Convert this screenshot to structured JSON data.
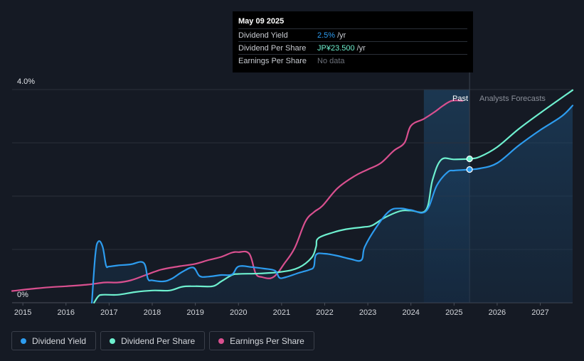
{
  "tooltip": {
    "date": "May 09 2025",
    "rows": [
      {
        "label": "Dividend Yield",
        "value": "2.5%",
        "unit": "/yr"
      },
      {
        "label": "Dividend Per Share",
        "value": "JP¥23.500",
        "unit": "/yr"
      },
      {
        "label": "Earnings Per Share",
        "value": "No data",
        "unit": ""
      }
    ]
  },
  "regions": {
    "past": "Past",
    "forecast": "Analysts Forecasts"
  },
  "legend": [
    {
      "label": "Dividend Yield",
      "color": "#2d9cef"
    },
    {
      "label": "Dividend Per Share",
      "color": "#6ef0cf"
    },
    {
      "label": "Earnings Per Share",
      "color": "#d9508f"
    }
  ],
  "chart_data": {
    "type": "line",
    "y_labels": {
      "top": "4.0%",
      "bottom": "0%"
    },
    "ylim": [
      0,
      4.0
    ],
    "xlim": [
      2014.75,
      2027.75
    ],
    "x_ticks": [
      "2015",
      "2016",
      "2017",
      "2018",
      "2019",
      "2020",
      "2021",
      "2022",
      "2023",
      "2024",
      "2025",
      "2026",
      "2027"
    ],
    "grid": true,
    "forecast_start": 2025.36,
    "past_band_start": 2024.3,
    "series": [
      {
        "name": "Dividend Yield",
        "color": "#2d9cef",
        "axis": "percent",
        "x": [
          2016.6,
          2016.68,
          2016.75,
          2016.85,
          2016.93,
          2017.0,
          2017.2,
          2017.5,
          2017.8,
          2017.9,
          2018.0,
          2018.25,
          2018.45,
          2018.7,
          2018.95,
          2019.1,
          2019.3,
          2019.6,
          2019.85,
          2020.0,
          2020.3,
          2020.6,
          2020.85,
          2020.95,
          2021.1,
          2021.4,
          2021.65,
          2021.75,
          2021.8,
          2022.0,
          2022.3,
          2022.6,
          2022.85,
          2022.93,
          2023.2,
          2023.5,
          2023.75,
          2024.0,
          2024.35,
          2024.6,
          2024.85,
          2025.0,
          2025.2,
          2025.36,
          2025.6,
          2026.0,
          2026.5,
          2027.0,
          2027.5,
          2027.75
        ],
        "y": [
          0.0,
          0.9,
          1.15,
          1.05,
          0.7,
          0.68,
          0.7,
          0.72,
          0.75,
          0.45,
          0.42,
          0.4,
          0.45,
          0.58,
          0.66,
          0.5,
          0.49,
          0.52,
          0.53,
          0.68,
          0.67,
          0.64,
          0.6,
          0.47,
          0.48,
          0.56,
          0.62,
          0.68,
          0.9,
          0.92,
          0.88,
          0.82,
          0.8,
          1.05,
          1.42,
          1.72,
          1.77,
          1.74,
          1.72,
          2.2,
          2.45,
          2.48,
          2.49,
          2.5,
          2.52,
          2.62,
          2.95,
          3.24,
          3.5,
          3.7
        ]
      },
      {
        "name": "Dividend Per Share",
        "color": "#6ef0cf",
        "axis": "dps",
        "x": [
          2016.65,
          2016.75,
          2016.85,
          2017.2,
          2017.6,
          2018.0,
          2018.4,
          2018.7,
          2019.0,
          2019.4,
          2019.6,
          2019.85,
          2020.0,
          2020.5,
          2021.0,
          2021.4,
          2021.7,
          2021.8,
          2021.85,
          2022.2,
          2022.5,
          2022.9,
          2023.1,
          2023.4,
          2023.75,
          2024.0,
          2024.35,
          2024.5,
          2024.7,
          2025.0,
          2025.36,
          2025.6,
          2026.0,
          2026.5,
          2027.0,
          2027.75
        ],
        "y": [
          0.0,
          0.12,
          0.15,
          0.15,
          0.2,
          0.23,
          0.23,
          0.3,
          0.31,
          0.31,
          0.4,
          0.52,
          0.54,
          0.55,
          0.58,
          0.66,
          0.85,
          1.05,
          1.21,
          1.32,
          1.38,
          1.42,
          1.45,
          1.6,
          1.72,
          1.73,
          1.74,
          2.3,
          2.68,
          2.69,
          2.7,
          2.74,
          2.92,
          3.26,
          3.56,
          3.99
        ]
      },
      {
        "name": "Earnings Per Share",
        "color": "#d9508f",
        "axis": "eps",
        "x": [
          2014.75,
          2015.2,
          2015.6,
          2016.0,
          2016.5,
          2016.9,
          2017.2,
          2017.5,
          2017.85,
          2018.2,
          2018.6,
          2019.0,
          2019.3,
          2019.6,
          2019.85,
          2020.0,
          2020.25,
          2020.4,
          2020.55,
          2020.75,
          2020.9,
          2021.05,
          2021.3,
          2021.55,
          2021.75,
          2021.95,
          2022.3,
          2022.7,
          2023.0,
          2023.3,
          2023.6,
          2023.85,
          2024.0,
          2024.3,
          2024.55,
          2024.75,
          2024.95,
          2025.2
        ],
        "y": [
          0.22,
          0.26,
          0.29,
          0.31,
          0.34,
          0.38,
          0.38,
          0.42,
          0.52,
          0.62,
          0.68,
          0.73,
          0.8,
          0.86,
          0.94,
          0.95,
          0.92,
          0.55,
          0.48,
          0.46,
          0.55,
          0.72,
          1.02,
          1.52,
          1.7,
          1.82,
          2.15,
          2.38,
          2.5,
          2.62,
          2.85,
          3.0,
          3.32,
          3.45,
          3.58,
          3.7,
          3.79,
          3.79
        ]
      }
    ],
    "markers": [
      {
        "series": "Dividend Per Share",
        "x": 2025.36,
        "y": 2.7
      },
      {
        "series": "Dividend Yield",
        "x": 2025.36,
        "y": 2.5
      }
    ]
  }
}
